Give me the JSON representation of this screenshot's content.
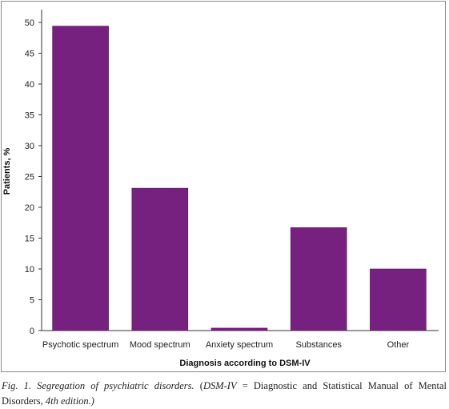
{
  "chart_data": {
    "type": "bar",
    "categories": [
      "Psychotic spectrum",
      "Mood spectrum",
      "Anxiety spectrum",
      "Substances",
      "Other"
    ],
    "values": [
      49.4,
      23.1,
      0.4,
      16.7,
      10.0
    ],
    "xlabel": "Diagnosis according to DSM-IV",
    "ylabel": "Patients, %",
    "ylim": [
      0,
      50
    ],
    "yticks": [
      0,
      5,
      10,
      15,
      20,
      25,
      30,
      35,
      40,
      45,
      50
    ],
    "bar_color": "#76217f",
    "grid": false
  },
  "caption": {
    "fig_label": "Fig. 1.",
    "title": "Segregation of psychiatric disorders.",
    "open_paren": "(",
    "abbr": "DSM-IV",
    "middle": " = Diagnostic and Statistical Manual of Mental Disorders, ",
    "edition": "4th edition.)"
  }
}
